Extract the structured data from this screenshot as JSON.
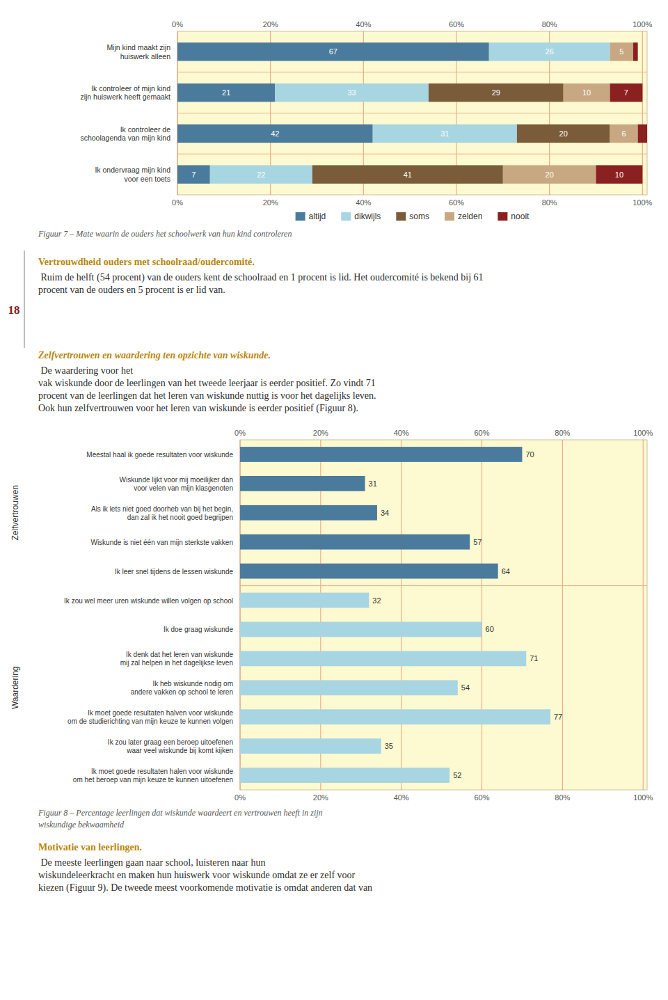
{
  "chart_data": [
    {
      "type": "bar",
      "orientation": "horizontal",
      "stacked": true,
      "title": "Figuur 7 – Mate waarin de ouders het schoolwerk van hun kind controleren",
      "categories": [
        "Mijn kind maakt zijn\nhuiswerk alleen",
        "Ik controleer of mijn kind\nzijn huiswerk heeft  gemaakt",
        "Ik controleer de\nschoolagenda van mijn kind",
        "Ik ondervraag mijn kind\nvoor een toets"
      ],
      "series": [
        {
          "name": "altijd",
          "color": "#4a7b9d",
          "values": [
            67,
            21,
            42,
            7
          ]
        },
        {
          "name": "dikwijls",
          "color": "#a8d5e2",
          "values": [
            26,
            33,
            31,
            22
          ]
        },
        {
          "name": "soms",
          "color": "#7a5c3a",
          "values": [
            0,
            29,
            20,
            41
          ]
        },
        {
          "name": "zelden",
          "color": "#c8a882",
          "values": [
            5,
            10,
            6,
            20
          ]
        },
        {
          "name": "nooit",
          "color": "#8b2020",
          "values": [
            1,
            7,
            2,
            10
          ]
        }
      ],
      "xlim": [
        0,
        101
      ],
      "xticks": [
        {
          "value": 0,
          "label": "0%"
        },
        {
          "value": 20,
          "label": "20%"
        },
        {
          "value": 40,
          "label": "40%"
        },
        {
          "value": 60,
          "label": "60%"
        },
        {
          "value": 80,
          "label": "80%"
        },
        {
          "value": 100,
          "label": "100%"
        }
      ],
      "grid": true,
      "legend": "bottom",
      "data_labels": true,
      "annotations": [
        "18",
        "Vertrouwdheid ouders met schoolraad/oudercomité.",
        " Ruim de helft (54 procent) van de ouders kent de schoolraad en 1 procent is lid. Het oudercomité is bekend bij 61\nprocent van de ouders en 5 procent is er lid van.",
        "Zelfvertrouwen en waardering ten opzichte van wiskunde.",
        " De waardering voor het\nvak wiskunde door de leerlingen van het tweede leerjaar is eerder positief. Zo vindt 71\nprocent van de leerlingen dat het leren van wiskunde nuttig is voor het dagelijks leven.\nOok hun zelfvertrouwen voor het leren van wiskunde is eerder positief (Figuur 8)."
      ]
    },
    {
      "type": "bar",
      "orientation": "horizontal",
      "title": "Figuur 8 – Percentage leerlingen dat wiskunde waardeert en vertrouwen heeft in zijn\nwiskundige bekwaamheid",
      "categories": [
        "Meestal haal ik goede resultaten voor wiskunde",
        "Wiskunde lijkt voor mij moeilijker dan\nvoor velen van mijn klasgenoten",
        "Als ik lets niet goed doorheb van bij het begin,\ndan zal ik het nooit goed begrijpen",
        "Wiskunde is niet één van mijn sterkste vakken",
        "Ik leer snel tijdens de lessen wiskunde",
        "Ik zou wel meer uren wiskunde willen volgen op school",
        "Ik doe graag wiskunde",
        "Ik denk dat het leren van wiskunde\nmij zal helpen in het dagelijkse leven",
        "Ik heb wiskunde nodig om\nandere vakken op school te leren",
        "Ik moet goede resultaten halven voor wiskunde\nom de studierichting van mijn keuze te kunnen volgen",
        "Ik zou later graag een beroep uitoefenen\nwaar veel wiskunde bij komt kijken",
        "Ik moet goede resultaten halen voor wiskunde\nom het beroep van mijn keuze te kunnen uitoefenen"
      ],
      "series": [
        {
          "name": "Zelfvertrouwen",
          "color": "#4a7b9d",
          "values": [
            70,
            31,
            34,
            57,
            64,
            null,
            null,
            null,
            null,
            null,
            null,
            null
          ]
        },
        {
          "name": "Waardering",
          "color": "#a8d5e2",
          "values": [
            null,
            null,
            null,
            null,
            null,
            32,
            60,
            71,
            54,
            77,
            35,
            52
          ]
        }
      ],
      "xlim": [
        0,
        101
      ],
      "xticks": [
        {
          "value": 0,
          "label": "0%"
        },
        {
          "value": 20,
          "label": "20%"
        },
        {
          "value": 40,
          "label": "40%"
        },
        {
          "value": 60,
          "label": "60%"
        },
        {
          "value": 80,
          "label": "80%"
        },
        {
          "value": 100,
          "label": "100%"
        }
      ],
      "grid": true,
      "data_labels": true,
      "annotations": [
        "Motivatie van leerlingen.",
        " De meeste leerlingen gaan naar school, luisteren naar hun\nwiskundeleerkracht en maken hun huiswerk voor wiskunde omdat ze er zelf voor\nkiezen (Figuur 9). De tweede meest voorkomende motivatie is omdat anderen dat van"
      ]
    }
  ]
}
